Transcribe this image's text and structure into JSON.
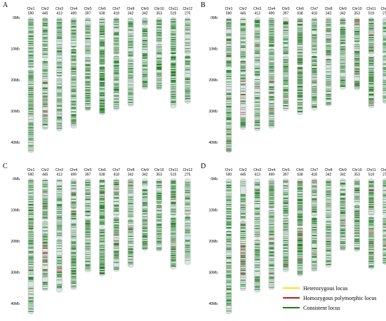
{
  "panels": [
    "A",
    "B",
    "C",
    "D"
  ],
  "axis_labels": [
    "0Mb",
    "10Mb",
    "20Mb",
    "30Mb",
    "40Mb"
  ],
  "axis_max_mb": 45,
  "chromosomes": [
    {
      "name": "Chr1",
      "count": "590",
      "length_mb": 43.3,
      "centromere_mb": 16.5
    },
    {
      "name": "Chr2",
      "count": "445",
      "length_mb": 35.9,
      "centromere_mb": 13.5
    },
    {
      "name": "Chr3",
      "count": "413",
      "length_mb": 36.4,
      "centromere_mb": 19.2
    },
    {
      "name": "Chr4",
      "count": "499",
      "length_mb": 35.5,
      "centromere_mb": 9.8
    },
    {
      "name": "Chr5",
      "count": "397",
      "length_mb": 29.9,
      "centromere_mb": 12.3
    },
    {
      "name": "Chr6",
      "count": "638",
      "length_mb": 31.2,
      "centromere_mb": 15.4
    },
    {
      "name": "Chr7",
      "count": "418",
      "length_mb": 29.7,
      "centromere_mb": 12.1
    },
    {
      "name": "Chr8",
      "count": "342",
      "length_mb": 28.4,
      "centromere_mb": 12.9
    },
    {
      "name": "Chr9",
      "count": "342",
      "length_mb": 23.0,
      "centromere_mb": 2.8
    },
    {
      "name": "Chr10",
      "count": "353",
      "length_mb": 23.2,
      "centromere_mb": 8.2
    },
    {
      "name": "Chr11",
      "count": "519",
      "length_mb": 29.0,
      "centromere_mb": 12.0
    },
    {
      "name": "Chr12",
      "count": "275",
      "length_mb": 27.5,
      "centromere_mb": 11.9
    }
  ],
  "legend": [
    {
      "label": "Heterozygous locus",
      "color": "#f5e31a"
    },
    {
      "label": "Homozygous polymorphic locus",
      "color": "#b22222"
    },
    {
      "label": "Consistent locus",
      "color": "#1a7a1a"
    }
  ],
  "colors": {
    "chromosome_body": "#dbe3e3",
    "chromosome_outline": "#9aa5a5"
  }
}
